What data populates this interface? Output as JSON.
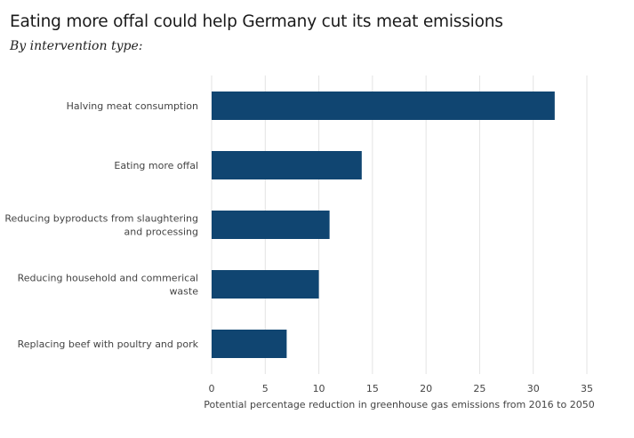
{
  "chart_data": {
    "type": "bar",
    "orientation": "horizontal",
    "title": "Eating more offal could help Germany cut its meat emissions",
    "subtitle": "By intervention type:",
    "categories": [
      [
        "Halving meat consumption"
      ],
      [
        "Eating more offal"
      ],
      [
        "Reducing byproducts from slaughtering",
        "and processing"
      ],
      [
        "Reducing household and commerical",
        "waste"
      ],
      [
        "Replacing beef with poultry and pork"
      ]
    ],
    "values": [
      32,
      14,
      11,
      10,
      7
    ],
    "xlabel": "Potential percentage reduction in greenhouse gas emissions from 2016 to 2050",
    "ylabel": "",
    "xlim": [
      0,
      35
    ],
    "xticks": [
      0,
      5,
      10,
      15,
      20,
      25,
      30,
      35
    ],
    "grid": true,
    "bar_color": "#104571",
    "grid_color": "#e3e3e3"
  }
}
